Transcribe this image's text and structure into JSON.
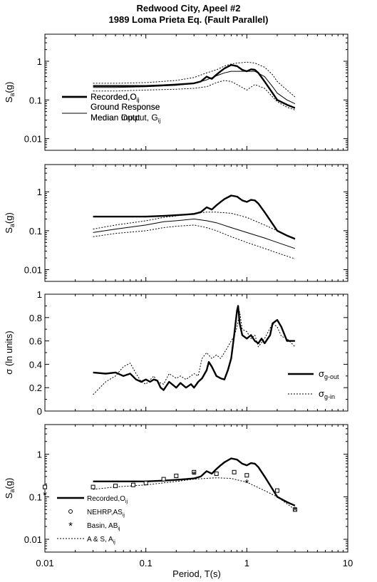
{
  "figure": {
    "title_line1": "Redwood City, Apeel #2",
    "title_line2": "1989 Loma Prieta Eq. (Fault Parallel)",
    "xlabel": "Period, T(s)",
    "x_tick_labels": [
      "0.01",
      "0.1",
      "1",
      "10"
    ]
  },
  "chart_data": [
    {
      "type": "line",
      "ylabel": "Sa(g)",
      "xlim": [
        0.01,
        10
      ],
      "ylim": [
        0.005,
        5
      ],
      "xscale": "log",
      "yscale": "log",
      "y_tick_labels": [
        "0.01",
        "0.1",
        "1"
      ],
      "legend_position": "left",
      "legend": [
        {
          "label": "Recorded,O",
          "sub": "ij",
          "style": "thick"
        },
        {
          "label": "Ground Response",
          "label2": "Median Output, G",
          "sub": "ij",
          "style": "thin"
        }
      ],
      "series": [
        {
          "name": "Recorded,Oij",
          "style": "thick",
          "x": [
            0.03,
            0.05,
            0.08,
            0.1,
            0.15,
            0.2,
            0.25,
            0.3,
            0.35,
            0.4,
            0.45,
            0.5,
            0.55,
            0.6,
            0.7,
            0.8,
            0.9,
            1.0,
            1.1,
            1.2,
            1.3,
            1.5,
            1.8,
            2.0,
            2.5,
            3.0
          ],
          "y": [
            0.23,
            0.23,
            0.23,
            0.23,
            0.24,
            0.25,
            0.26,
            0.27,
            0.3,
            0.4,
            0.35,
            0.45,
            0.55,
            0.65,
            0.8,
            0.75,
            0.6,
            0.55,
            0.62,
            0.6,
            0.5,
            0.3,
            0.15,
            0.1,
            0.075,
            0.062
          ]
        },
        {
          "name": "Median Output, Gij",
          "style": "thin",
          "x": [
            0.03,
            0.05,
            0.1,
            0.2,
            0.3,
            0.4,
            0.5,
            0.6,
            0.7,
            0.8,
            1.0,
            1.2,
            1.5,
            1.8,
            2.0,
            2.5,
            3.0
          ],
          "y": [
            0.21,
            0.21,
            0.22,
            0.24,
            0.27,
            0.33,
            0.42,
            0.5,
            0.55,
            0.55,
            0.55,
            0.55,
            0.4,
            0.22,
            0.15,
            0.1,
            0.08
          ]
        },
        {
          "name": "upper bound",
          "style": "dotted",
          "x": [
            0.03,
            0.05,
            0.1,
            0.2,
            0.3,
            0.4,
            0.5,
            0.6,
            0.7,
            0.8,
            0.9,
            1.0,
            1.2,
            1.5,
            1.8,
            2.0,
            2.5,
            3.0
          ],
          "y": [
            0.27,
            0.27,
            0.28,
            0.32,
            0.38,
            0.5,
            0.6,
            0.75,
            0.85,
            0.9,
            0.92,
            0.95,
            0.9,
            0.7,
            0.45,
            0.3,
            0.18,
            0.12
          ]
        },
        {
          "name": "lower bound",
          "style": "dotted",
          "x": [
            0.03,
            0.05,
            0.1,
            0.2,
            0.3,
            0.4,
            0.5,
            0.6,
            0.7,
            0.8,
            1.0,
            1.2,
            1.5,
            1.8,
            2.0,
            2.5,
            3.0
          ],
          "y": [
            0.17,
            0.17,
            0.18,
            0.19,
            0.2,
            0.22,
            0.28,
            0.32,
            0.3,
            0.25,
            0.18,
            0.25,
            0.2,
            0.12,
            0.09,
            0.065,
            0.055
          ]
        }
      ]
    },
    {
      "type": "line",
      "ylabel": "Sa(g)",
      "xlim": [
        0.01,
        10
      ],
      "ylim": [
        0.005,
        5
      ],
      "xscale": "log",
      "yscale": "log",
      "y_tick_labels": [
        "0.01",
        "0.1",
        "1"
      ],
      "legend_position": "left",
      "legend": [
        {
          "label": "Recorded,O",
          "sub": "ij",
          "style": "thick"
        },
        {
          "label": "Ground Response",
          "label2": "Median Input",
          "style": "thin"
        }
      ],
      "series": [
        {
          "name": "Recorded,Oij",
          "style": "thick",
          "x": [
            0.03,
            0.05,
            0.08,
            0.1,
            0.15,
            0.2,
            0.25,
            0.3,
            0.35,
            0.4,
            0.45,
            0.5,
            0.55,
            0.6,
            0.7,
            0.8,
            0.9,
            1.0,
            1.1,
            1.2,
            1.3,
            1.5,
            1.8,
            2.0,
            2.5,
            3.0
          ],
          "y": [
            0.23,
            0.23,
            0.23,
            0.23,
            0.24,
            0.25,
            0.26,
            0.27,
            0.3,
            0.4,
            0.35,
            0.45,
            0.55,
            0.65,
            0.8,
            0.75,
            0.6,
            0.55,
            0.62,
            0.6,
            0.5,
            0.3,
            0.15,
            0.1,
            0.075,
            0.062
          ]
        },
        {
          "name": "Median Input",
          "style": "thin",
          "x": [
            0.03,
            0.05,
            0.1,
            0.15,
            0.2,
            0.3,
            0.4,
            0.5,
            0.7,
            1.0,
            1.5,
            2.0,
            3.0
          ],
          "y": [
            0.09,
            0.11,
            0.14,
            0.17,
            0.18,
            0.2,
            0.18,
            0.16,
            0.12,
            0.09,
            0.065,
            0.05,
            0.035
          ]
        },
        {
          "name": "upper bound",
          "style": "dotted",
          "x": [
            0.03,
            0.05,
            0.1,
            0.15,
            0.2,
            0.3,
            0.4,
            0.5,
            0.7,
            1.0,
            1.5,
            2.0,
            3.0
          ],
          "y": [
            0.11,
            0.14,
            0.18,
            0.22,
            0.24,
            0.28,
            0.3,
            0.3,
            0.28,
            0.22,
            0.14,
            0.1,
            0.06
          ]
        },
        {
          "name": "lower bound",
          "style": "dotted",
          "x": [
            0.03,
            0.05,
            0.1,
            0.15,
            0.2,
            0.3,
            0.4,
            0.5,
            0.7,
            1.0,
            1.5,
            2.0,
            3.0
          ],
          "y": [
            0.07,
            0.085,
            0.1,
            0.12,
            0.13,
            0.14,
            0.12,
            0.1,
            0.07,
            0.05,
            0.035,
            0.027,
            0.019
          ]
        }
      ]
    },
    {
      "type": "line",
      "ylabel": "σ (ln units)",
      "xlim": [
        0.01,
        10
      ],
      "ylim": [
        0,
        1
      ],
      "xscale": "log",
      "yscale": "linear",
      "y_tick_labels": [
        "0",
        "0.2",
        "0.4",
        "0.6",
        "0.8",
        "1"
      ],
      "legend_position": "right",
      "legend": [
        {
          "label": "σ",
          "sub": "g-out",
          "style": "thick"
        },
        {
          "label": "σ",
          "sub": "g-in",
          "style": "dotted"
        }
      ],
      "series": [
        {
          "name": "σ g-out",
          "style": "thick",
          "x": [
            0.03,
            0.04,
            0.05,
            0.06,
            0.07,
            0.08,
            0.09,
            0.1,
            0.11,
            0.12,
            0.13,
            0.14,
            0.15,
            0.17,
            0.2,
            0.22,
            0.25,
            0.28,
            0.3,
            0.33,
            0.36,
            0.4,
            0.42,
            0.45,
            0.5,
            0.55,
            0.6,
            0.65,
            0.7,
            0.75,
            0.8,
            0.82,
            0.85,
            0.9,
            1.0,
            1.1,
            1.2,
            1.3,
            1.4,
            1.5,
            1.7,
            1.8,
            2.0,
            2.2,
            2.5,
            3.0
          ],
          "y": [
            0.33,
            0.32,
            0.33,
            0.3,
            0.32,
            0.27,
            0.25,
            0.27,
            0.25,
            0.27,
            0.26,
            0.2,
            0.18,
            0.25,
            0.2,
            0.24,
            0.2,
            0.23,
            0.2,
            0.25,
            0.28,
            0.35,
            0.42,
            0.38,
            0.3,
            0.28,
            0.27,
            0.35,
            0.45,
            0.65,
            0.86,
            0.9,
            0.75,
            0.65,
            0.62,
            0.65,
            0.6,
            0.58,
            0.62,
            0.58,
            0.65,
            0.75,
            0.78,
            0.72,
            0.6,
            0.6
          ]
        },
        {
          "name": "σ g-in",
          "style": "dotted",
          "x": [
            0.03,
            0.035,
            0.04,
            0.05,
            0.06,
            0.07,
            0.08,
            0.09,
            0.1,
            0.12,
            0.13,
            0.15,
            0.17,
            0.2,
            0.22,
            0.25,
            0.3,
            0.33,
            0.36,
            0.4,
            0.45,
            0.5,
            0.55,
            0.6,
            0.65,
            0.7,
            0.75,
            0.8,
            0.85,
            0.9,
            1.0,
            1.1,
            1.2,
            1.3,
            1.5,
            1.8,
            2.0,
            2.2,
            2.5,
            3.0
          ],
          "y": [
            0.14,
            0.2,
            0.25,
            0.3,
            0.38,
            0.41,
            0.32,
            0.25,
            0.23,
            0.3,
            0.25,
            0.23,
            0.32,
            0.28,
            0.3,
            0.27,
            0.32,
            0.3,
            0.45,
            0.5,
            0.45,
            0.48,
            0.45,
            0.5,
            0.55,
            0.6,
            0.64,
            0.72,
            0.85,
            0.7,
            0.68,
            0.62,
            0.65,
            0.55,
            0.62,
            0.75,
            0.72,
            0.64,
            0.62,
            0.55
          ]
        }
      ]
    },
    {
      "type": "line",
      "ylabel": "Sa(g)",
      "xlim": [
        0.01,
        10
      ],
      "ylim": [
        0.005,
        5
      ],
      "xscale": "log",
      "yscale": "log",
      "y_tick_labels": [
        "0.01",
        "0.1",
        "1"
      ],
      "legend_position": "left",
      "legend": [
        {
          "label": "Recorded,O",
          "sub": "ij",
          "style": "thick"
        },
        {
          "label": "NEHRP,AS",
          "sub": "ij",
          "style": "square"
        },
        {
          "label": "Basin, AB",
          "sub": "ij",
          "style": "star"
        },
        {
          "label": "A & S, A",
          "sub": "ij",
          "style": "dotted"
        }
      ],
      "series": [
        {
          "name": "Recorded,Oij",
          "style": "thick",
          "x": [
            0.03,
            0.05,
            0.08,
            0.1,
            0.15,
            0.2,
            0.25,
            0.3,
            0.35,
            0.4,
            0.45,
            0.5,
            0.55,
            0.6,
            0.7,
            0.8,
            0.9,
            1.0,
            1.1,
            1.2,
            1.3,
            1.5,
            1.8,
            2.0,
            2.5,
            3.0
          ],
          "y": [
            0.23,
            0.23,
            0.23,
            0.23,
            0.24,
            0.25,
            0.26,
            0.27,
            0.3,
            0.4,
            0.35,
            0.45,
            0.55,
            0.65,
            0.8,
            0.75,
            0.6,
            0.55,
            0.62,
            0.6,
            0.5,
            0.3,
            0.15,
            0.1,
            0.075,
            0.062
          ]
        },
        {
          "name": "NEHRP,ASij",
          "style": "square",
          "x": [
            0.01,
            0.03,
            0.05,
            0.075,
            0.1,
            0.15,
            0.2,
            0.3,
            0.5,
            0.75,
            1.0,
            2.0,
            3.0
          ],
          "y": [
            0.17,
            0.17,
            0.18,
            0.19,
            0.21,
            0.26,
            0.31,
            0.38,
            0.35,
            0.38,
            0.32,
            0.14,
            0.05
          ]
        },
        {
          "name": "Basin, ABij",
          "style": "star",
          "x": [
            0.01,
            0.3,
            1.0,
            3.0
          ],
          "y": [
            0.115,
            0.34,
            0.22,
            0.05
          ]
        },
        {
          "name": "A & S, Aij",
          "style": "dotted",
          "x": [
            0.03,
            0.05,
            0.1,
            0.2,
            0.3,
            0.5,
            0.7,
            1.0,
            1.5,
            2.0,
            3.0
          ],
          "y": [
            0.15,
            0.17,
            0.19,
            0.23,
            0.26,
            0.28,
            0.27,
            0.22,
            0.14,
            0.1,
            0.05
          ]
        }
      ]
    }
  ]
}
